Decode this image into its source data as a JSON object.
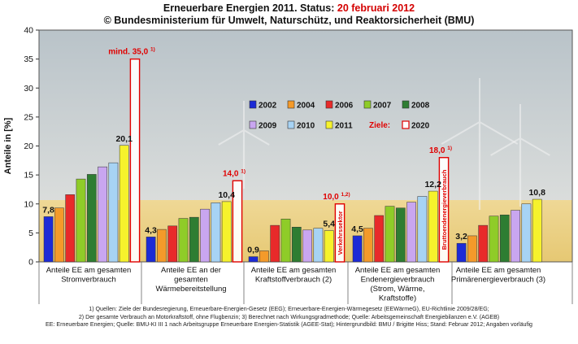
{
  "title_line1": "Erneuerbare Energien 2011. Status: ",
  "title_date": "20 februari 2012",
  "title_line2": "© Bundesministerium für Umwelt, Naturschütz, und Reaktorsicherheit (BMU)",
  "footnotes": [
    "1) Quellen: Ziele der Bundesregierung, Erneuerbare-Energien-Gesetz (EEG); Erneuerbare-Energien-Wärmegesetz (EEWärmeG), EU-Richtlinie 2009/28/EG;",
    "2) Der gesamte Verbrauch an Motorkraftstoff, ohne Flugbenzin; 3) Berechnet nach Wirkungsgradmethode; Quelle: Arbeitsgemeinschaft Energiebilanzen e.V. (AGEB)",
    "EE: Erneuerbare Energien; Quelle: BMU-KI III 1 nach Arbeitsgruppe Erneuerbare Energien-Statistik (AGEE-Stat); Hintergrundbild: BMU / Brigitte Hiss; Stand: Februar 2012; Angaben vorläufig"
  ],
  "colors": {
    "2002": "#1c2bd6",
    "2004": "#f49a2a",
    "2006": "#e82a2a",
    "2007": "#8fcc28",
    "2008": "#2e7d32",
    "2009": "#c9a6f0",
    "2010": "#a7d3f4",
    "2011": "#f6f22c",
    "2020": "#ffffff",
    "target_outline": "#e00000",
    "target_text": "#e00000",
    "sky_top": "#b9c3c9",
    "sky_bottom": "#e6e6e2",
    "field": "#e6c873"
  },
  "chart_data": {
    "type": "bar",
    "ylabel": "Anteile in [%]",
    "ylim": [
      0,
      40
    ],
    "yticks": [
      0,
      5,
      10,
      15,
      20,
      25,
      30,
      35,
      40
    ],
    "grid": false,
    "legend_position": "top-right",
    "legend_target_label": "Ziele:",
    "categories": [
      [
        "Anteile EE am gesamten",
        "Stromverbrauch"
      ],
      [
        "Anteile EE an der",
        "gesamten",
        "Wärmebereitstellung"
      ],
      [
        "Anteile EE am gesamten",
        "Kraftstoffverbrauch (2)"
      ],
      [
        "Anteile EE am gesamten",
        "Endenergieverbrauch",
        "(Strom, Wärme,",
        "Kraftstoffe)"
      ],
      [
        "Anteile EE am gesamten",
        "Primärenergieverbrauch (3)"
      ]
    ],
    "series": [
      {
        "name": "2002",
        "values": [
          7.8,
          4.3,
          0.9,
          4.5,
          3.2
        ]
      },
      {
        "name": "2004",
        "values": [
          9.3,
          5.6,
          1.9,
          5.8,
          4.5
        ]
      },
      {
        "name": "2006",
        "values": [
          11.6,
          6.2,
          6.3,
          8.0,
          6.3
        ]
      },
      {
        "name": "2007",
        "values": [
          14.3,
          7.5,
          7.4,
          9.6,
          7.9
        ]
      },
      {
        "name": "2008",
        "values": [
          15.1,
          7.7,
          6.0,
          9.3,
          8.1
        ]
      },
      {
        "name": "2009",
        "values": [
          16.4,
          9.1,
          5.5,
          10.3,
          8.9
        ]
      },
      {
        "name": "2010",
        "values": [
          17.1,
          10.2,
          5.8,
          11.3,
          10.0
        ]
      },
      {
        "name": "2011",
        "values": [
          20.1,
          10.4,
          5.4,
          12.2,
          10.8
        ]
      },
      {
        "name": "2020",
        "values": [
          35.0,
          14.0,
          10.0,
          18.0,
          null
        ]
      }
    ],
    "value_labels": [
      {
        "category": 0,
        "series": "2002",
        "text": "7,8"
      },
      {
        "category": 0,
        "series": "2011",
        "text": "20,1"
      },
      {
        "category": 1,
        "series": "2002",
        "text": "4,3"
      },
      {
        "category": 1,
        "series": "2011",
        "text": "10,4"
      },
      {
        "category": 2,
        "series": "2002",
        "text": "0,9"
      },
      {
        "category": 2,
        "series": "2011",
        "text": "5,4"
      },
      {
        "category": 3,
        "series": "2002",
        "text": "4,5"
      },
      {
        "category": 3,
        "series": "2011",
        "text": "12,2"
      },
      {
        "category": 4,
        "series": "2002",
        "text": "3,2"
      },
      {
        "category": 4,
        "series": "2011",
        "text": "10,8"
      }
    ],
    "target_labels": [
      {
        "category": 0,
        "text": "mind. 35,0",
        "sup": "1)"
      },
      {
        "category": 1,
        "text": "14,0",
        "sup": "1)"
      },
      {
        "category": 2,
        "text": "10,0",
        "sup": "1,2)"
      },
      {
        "category": 3,
        "text": "18,0",
        "sup": "1)"
      }
    ],
    "annotations": [
      {
        "category": 2,
        "text": "Verkehrssektor"
      },
      {
        "category": 3,
        "text": "Bruttoendenergieverbrauch"
      }
    ]
  }
}
